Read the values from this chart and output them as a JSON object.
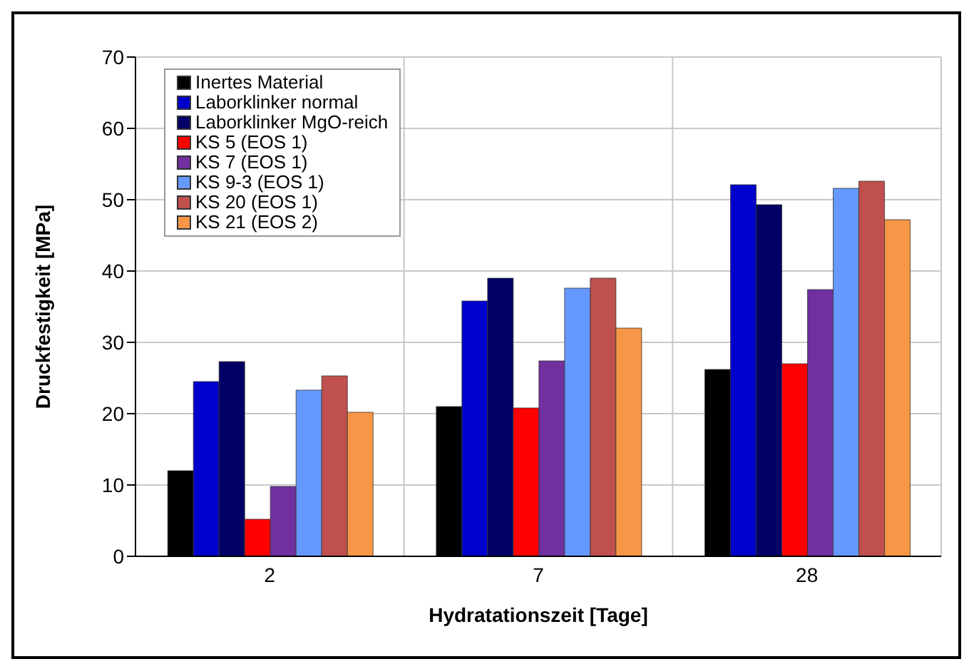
{
  "chart_data": {
    "type": "bar",
    "xlabel": "Hydratationszeit [Tage]",
    "ylabel": "Druckfestigkeit  [MPa]",
    "categories": [
      "2",
      "7",
      "28"
    ],
    "series": [
      {
        "name": "Inertes Material",
        "color": "#000000",
        "values": [
          12,
          21,
          26.2
        ]
      },
      {
        "name": "Laborklinker normal",
        "color": "#0000cc",
        "values": [
          24.5,
          35.8,
          52.1
        ]
      },
      {
        "name": "Laborklinker MgO-reich",
        "color": "#000066",
        "values": [
          27.3,
          39,
          49.3
        ]
      },
      {
        "name": "KS 5 (EOS 1)",
        "color": "#ff0000",
        "values": [
          5.2,
          20.8,
          27
        ]
      },
      {
        "name": "KS 7 (EOS 1)",
        "color": "#7030a0",
        "values": [
          9.8,
          27.4,
          37.4
        ]
      },
      {
        "name": "KS 9-3 (EOS 1)",
        "color": "#6699ff",
        "values": [
          23.3,
          37.6,
          51.6
        ]
      },
      {
        "name": "KS 20 (EOS 1)",
        "color": "#c0504d",
        "values": [
          25.3,
          39,
          52.6
        ]
      },
      {
        "name": "KS 21 (EOS 2)",
        "color": "#f79646",
        "values": [
          20.2,
          32,
          47.2
        ]
      }
    ],
    "ylim": [
      0,
      70
    ],
    "yticks": [
      0,
      10,
      20,
      30,
      40,
      50,
      60,
      70
    ],
    "grid": true,
    "legend": "top left"
  }
}
